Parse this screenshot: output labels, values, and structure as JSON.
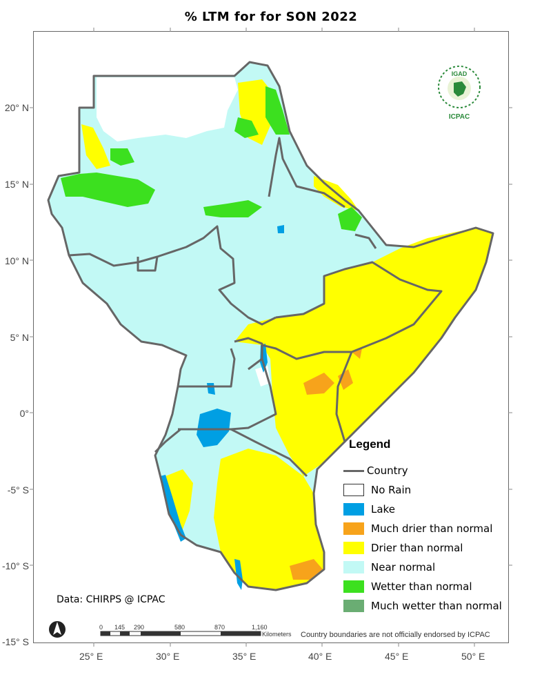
{
  "title": "% LTM for  for SON  2022",
  "lat_labels": [
    "20° N",
    "15° N",
    "10° N",
    "5° N",
    "0°",
    "-5° S",
    "-10° S",
    "-15° S"
  ],
  "lon_labels": [
    "25° E",
    "30° E",
    "35° E",
    "40° E",
    "45° E",
    "50° E"
  ],
  "legend": {
    "title": "Legend",
    "country_label": "Country",
    "items": [
      {
        "label": "No Rain",
        "color": "#ffffff"
      },
      {
        "label": "Lake",
        "color": "#009fe3"
      },
      {
        "label": "Much drier than normal",
        "color": "#f7a31b"
      },
      {
        "label": "Drier than normal",
        "color": "#ffff00"
      },
      {
        "label": "Near normal",
        "color": "#c2f9f5"
      },
      {
        "label": "Wetter than normal",
        "color": "#3ce01f"
      },
      {
        "label": "Much wetter than normal",
        "color": "#6aad73"
      }
    ]
  },
  "source": "Data: CHIRPS @ ICPAC",
  "disclaimer": "Country boundaries are not officially endorsed by ICPAC",
  "scalebar": {
    "ticks": [
      "0",
      "145",
      "290",
      "580",
      "870",
      "1,160"
    ],
    "unit": "Kilometers"
  },
  "logo": {
    "top_text": "IGAD",
    "bottom_text": "ICPAC"
  },
  "colors": {
    "border": "#666666",
    "near_normal": "#c2f9f5",
    "drier": "#ffff00",
    "much_drier": "#f7a31b",
    "wetter": "#3ce01f",
    "lake": "#009fe3"
  }
}
